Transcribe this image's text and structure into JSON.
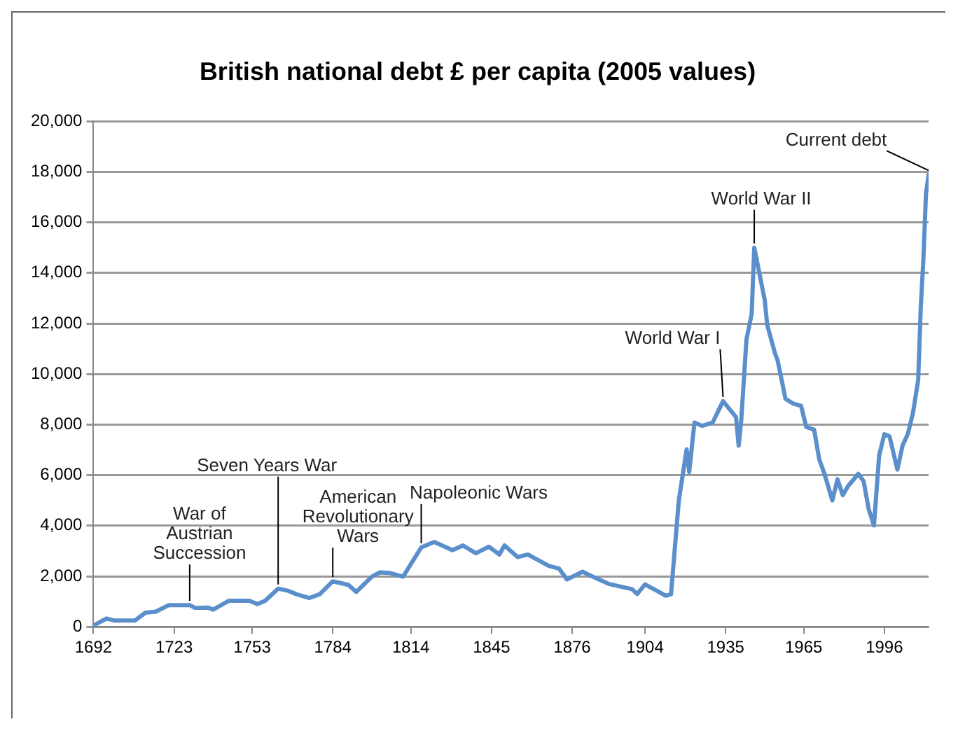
{
  "chart_data": {
    "type": "line",
    "title": "British national debt £ per capita (2005 values)",
    "x": [
      1692,
      1697,
      1700,
      1708,
      1712,
      1716,
      1721,
      1729,
      1731,
      1736,
      1738,
      1744,
      1746,
      1752,
      1755,
      1758,
      1763,
      1767,
      1770,
      1775,
      1779,
      1784,
      1790,
      1793,
      1799,
      1802,
      1806,
      1811,
      1814,
      1818,
      1823,
      1830,
      1834,
      1839,
      1844,
      1848,
      1850,
      1855,
      1859,
      1867,
      1871,
      1874,
      1880,
      1883,
      1890,
      1899,
      1901,
      1904,
      1909,
      1912,
      1914,
      1917,
      1920,
      1921,
      1923,
      1926,
      1930,
      1934,
      1939,
      1940,
      1941,
      1943,
      1945,
      1946,
      1950,
      1951,
      1954,
      1955,
      1958,
      1961,
      1964,
      1966,
      1969,
      1971,
      1973,
      1976,
      1978,
      1980,
      1982,
      1986,
      1988,
      1990,
      1992,
      1994,
      1996,
      1998,
      2001,
      2003,
      2005,
      2007,
      2009,
      2010,
      2011,
      2012,
      2013
    ],
    "series": [
      {
        "color": "#5b8fcb",
        "values": [
          50,
          330,
          250,
          250,
          560,
          600,
          860,
          860,
          750,
          760,
          680,
          1030,
          1030,
          1030,
          900,
          1030,
          1510,
          1420,
          1290,
          1140,
          1290,
          1800,
          1660,
          1380,
          1980,
          2150,
          2130,
          1980,
          2480,
          3140,
          3360,
          3030,
          3220,
          2910,
          3170,
          2860,
          3220,
          2760,
          2860,
          2410,
          2300,
          1870,
          2180,
          2030,
          1700,
          1490,
          1300,
          1680,
          1400,
          1230,
          1290,
          5000,
          7020,
          6120,
          8080,
          7950,
          8080,
          8930,
          8290,
          7170,
          8180,
          11370,
          12380,
          15000,
          12940,
          11930,
          10810,
          10530,
          9020,
          8830,
          8740,
          7900,
          7800,
          6610,
          6050,
          5000,
          5840,
          5210,
          5560,
          6050,
          5770,
          4650,
          4010,
          6780,
          7620,
          7530,
          6220,
          7170,
          7620,
          8460,
          9760,
          12660,
          14530,
          17140,
          17890
        ]
      }
    ],
    "xlim": [
      1692,
      2013
    ],
    "xticks": [
      1692,
      1723,
      1753,
      1784,
      1814,
      1845,
      1876,
      1904,
      1935,
      1965,
      1996
    ],
    "ylim": [
      0,
      20000
    ],
    "yticks": [
      {
        "value": 0,
        "label": "0"
      },
      {
        "value": 2000,
        "label": "2,000"
      },
      {
        "value": 4000,
        "label": "4,000"
      },
      {
        "value": 6000,
        "label": "6,000"
      },
      {
        "value": 8000,
        "label": "8,000"
      },
      {
        "value": 10000,
        "label": "10,000"
      },
      {
        "value": 12000,
        "label": "12,000"
      },
      {
        "value": 14000,
        "label": "14,000"
      },
      {
        "value": 16000,
        "label": "16,000"
      },
      {
        "value": 18000,
        "label": "18,000"
      },
      {
        "value": 20000,
        "label": "20,000"
      }
    ],
    "grid": "y",
    "legend": false,
    "marker": "none",
    "line_style": "solid",
    "annotations": [
      {
        "text": "War of Austrian Succession",
        "x": 1729,
        "y": 860
      },
      {
        "text": "Seven Years War",
        "x": 1763,
        "y": 1510
      },
      {
        "text": "American Revolutionary Wars",
        "x": 1784,
        "y": 1800
      },
      {
        "text": "Napoleonic Wars",
        "x": 1818,
        "y": 3140
      },
      {
        "text": "World War I",
        "x": 1934,
        "y": 8930
      },
      {
        "text": "World War II",
        "x": 1946,
        "y": 15000
      },
      {
        "text": "Current debt",
        "x": 2013,
        "y": 17890
      }
    ]
  }
}
